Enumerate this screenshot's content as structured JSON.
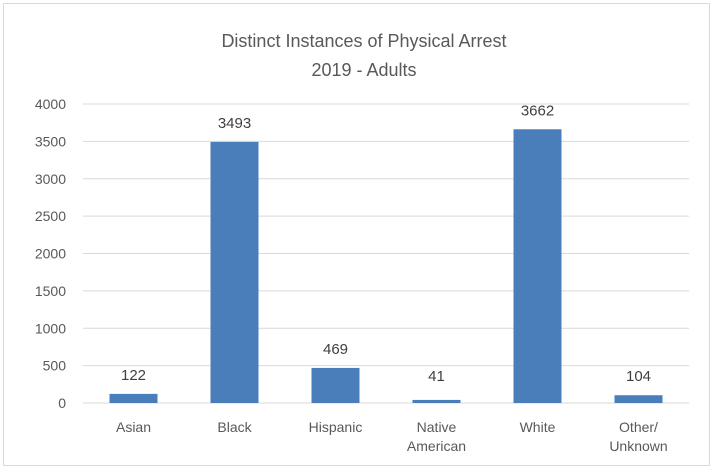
{
  "chart_data": {
    "type": "bar",
    "title": "Distinct Instances of Physical Arrest",
    "subtitle": "2019 - Adults",
    "categories": [
      [
        "Asian"
      ],
      [
        "Black"
      ],
      [
        "Hispanic"
      ],
      [
        "Native",
        "American"
      ],
      [
        "White"
      ],
      [
        "Other/",
        "Unknown"
      ]
    ],
    "values": [
      122,
      3493,
      469,
      41,
      3662,
      104
    ],
    "data_labels": [
      "122",
      "3493",
      "469",
      "41",
      "3662",
      "104"
    ],
    "ylim": [
      0,
      4000
    ],
    "yticks": [
      0,
      500,
      1000,
      1500,
      2000,
      2500,
      3000,
      3500,
      4000
    ],
    "grid": true,
    "legend": "none",
    "bar_color": "#4a7ebb",
    "grid_color": "#d9d9d9"
  }
}
